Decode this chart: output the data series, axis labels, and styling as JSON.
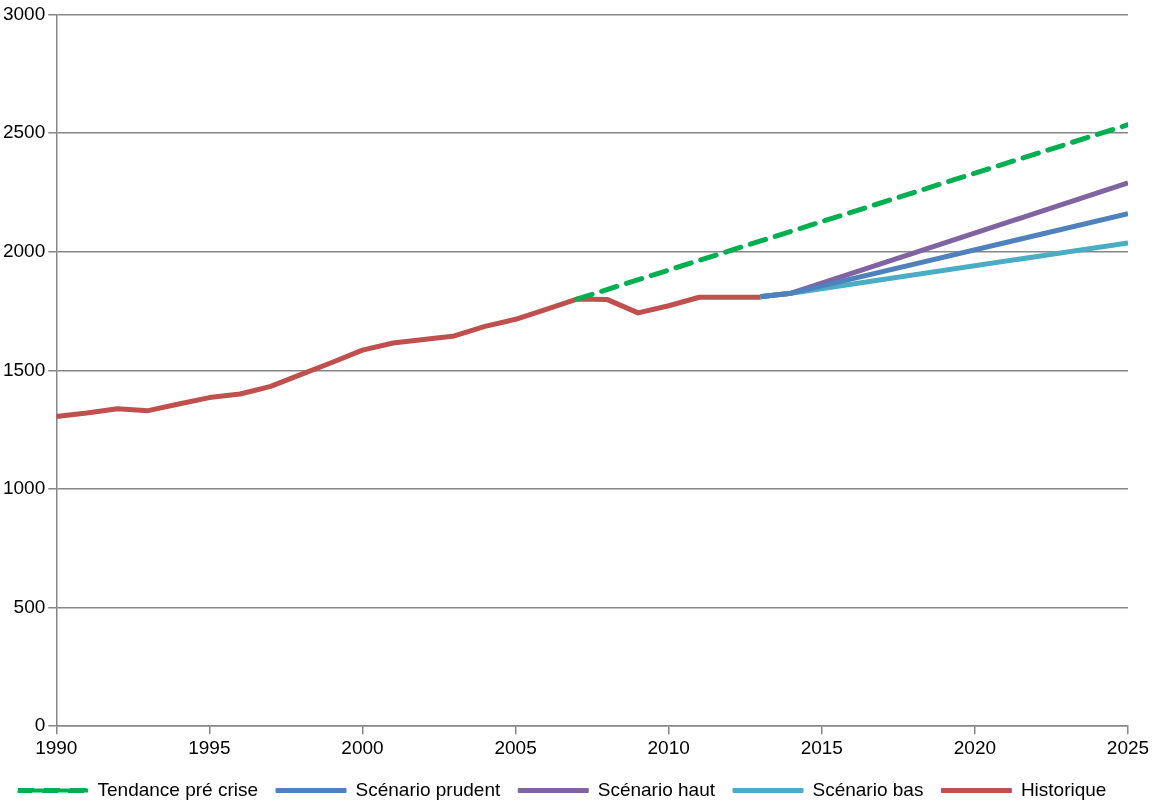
{
  "chart_data": {
    "type": "line",
    "xlim": [
      1990,
      2025
    ],
    "xticks": [
      1990,
      1995,
      2000,
      2005,
      2010,
      2015,
      2020,
      2025
    ],
    "ylim": [
      0,
      3000
    ],
    "yticks": [
      0,
      500,
      1000,
      1500,
      2000,
      2500,
      3000
    ],
    "grid": "y",
    "legend": "bottom",
    "marker": "none",
    "series": [
      {
        "name": "Tendance pré crise",
        "color": "#00b050",
        "line_style": "dashed",
        "x": [
          2007,
          2025
        ],
        "values": [
          1800,
          2535
        ]
      },
      {
        "name": "Scénario prudent",
        "color": "#4f81bd",
        "x": [
          2013,
          2014,
          2025
        ],
        "values": [
          1810,
          1825,
          2160
        ]
      },
      {
        "name": "Scénario haut",
        "color": "#8064a2",
        "x": [
          2013,
          2014,
          2025
        ],
        "values": [
          1810,
          1825,
          2290
        ]
      },
      {
        "name": "Scénario bas",
        "color": "#4bacc6",
        "x": [
          2013,
          2014,
          2025
        ],
        "values": [
          1810,
          1825,
          2037
        ]
      },
      {
        "name": "Historique",
        "color": "#c0504d",
        "x": [
          1990,
          1991,
          1992,
          1993,
          1994,
          1995,
          1996,
          1997,
          1998,
          1999,
          2000,
          2001,
          2002,
          2003,
          2004,
          2005,
          2006,
          2007,
          2008,
          2009,
          2010,
          2011,
          2012,
          2013
        ],
        "values": [
          1305,
          1320,
          1338,
          1330,
          1358,
          1385,
          1400,
          1432,
          1483,
          1533,
          1585,
          1615,
          1630,
          1645,
          1685,
          1715,
          1757,
          1800,
          1798,
          1742,
          1772,
          1808,
          1808,
          1808
        ]
      }
    ]
  }
}
